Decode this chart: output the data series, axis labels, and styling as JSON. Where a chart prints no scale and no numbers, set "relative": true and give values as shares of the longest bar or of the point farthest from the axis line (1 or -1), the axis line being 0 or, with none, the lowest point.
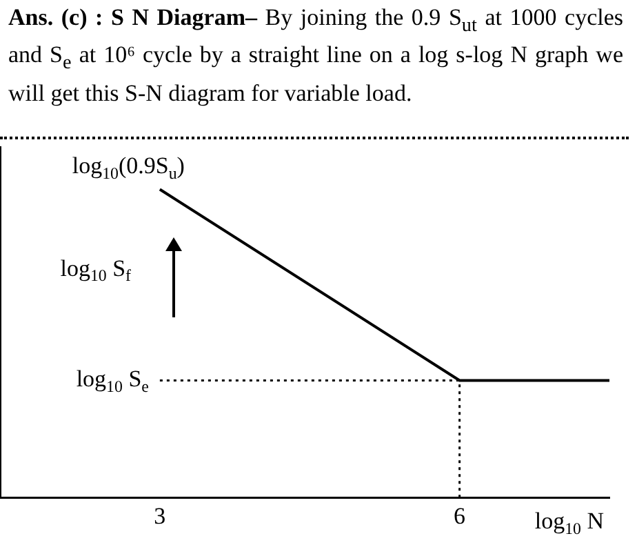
{
  "chart_data": {
    "type": "line",
    "title": "Ans. (c) : S N Diagram–",
    "subtitle": "By joining the 0.9 S$_{ut}$ at 1000 cycles and S$_{e}$ at 10⁶ cycle by a straight line on a log s-log N graph we will get this S-N diagram for variable load.",
    "xlabel": "log$_{10}$ N",
    "ylabel": "log$_{10}$ S$_{f}$",
    "relative": true,
    "x": [
      3,
      6,
      7.5
    ],
    "values": [
      1,
      0.38,
      0.38
    ],
    "color": "#000000",
    "xlim": [
      1.4,
      7.5
    ],
    "xticks": [
      3,
      6
    ],
    "grid": false,
    "legend": false,
    "marker": "none",
    "line_style": "solid",
    "ref_lines": [
      {
        "axis": "y",
        "value": 0.38,
        "label": "log$_{10}$ S$_{e}$",
        "line_style": "dotted"
      },
      {
        "axis": "x",
        "value": 6,
        "line_style": "dotted"
      }
    ],
    "annotations": [
      {
        "text": "log$_{10}$(0.9S$_{u}$)",
        "x": 3,
        "y": 1
      }
    ]
  }
}
